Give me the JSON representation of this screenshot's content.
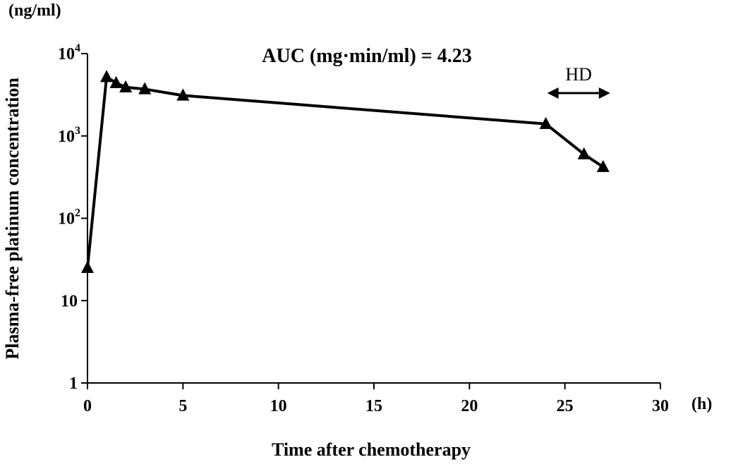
{
  "chart_data": {
    "type": "line",
    "y_unit": "(ng/ml)",
    "x_unit": "(h)",
    "xlabel": "Time after chemotherapy",
    "ylabel": "Plasma-free platinum concentration",
    "annotation": "AUC (mg·min/ml) = 4.23",
    "hd_label": "HD",
    "hd_range": [
      24,
      27
    ],
    "xlim": [
      0,
      30
    ],
    "ylim": [
      1,
      10000
    ],
    "y_scale": "log",
    "grid": false,
    "x_ticks": [
      {
        "value": 0,
        "label": "0"
      },
      {
        "value": 5,
        "label": "5"
      },
      {
        "value": 10,
        "label": "10"
      },
      {
        "value": 15,
        "label": "15"
      },
      {
        "value": 20,
        "label": "20"
      },
      {
        "value": 25,
        "label": "25"
      },
      {
        "value": 30,
        "label": "30"
      }
    ],
    "y_ticks": [
      {
        "value": 1,
        "base": "1",
        "exp": ""
      },
      {
        "value": 10,
        "base": "10",
        "exp": ""
      },
      {
        "value": 100,
        "base": "10",
        "exp": "2"
      },
      {
        "value": 1000,
        "base": "10",
        "exp": "3"
      },
      {
        "value": 10000,
        "base": "10",
        "exp": "4"
      }
    ],
    "series": [
      {
        "marker": "triangle",
        "color": "#000000",
        "x": [
          0,
          1,
          1.5,
          2,
          3,
          5,
          24,
          26,
          27
        ],
        "y": [
          25,
          5200,
          4400,
          3900,
          3700,
          3100,
          1400,
          600,
          420
        ]
      }
    ]
  }
}
